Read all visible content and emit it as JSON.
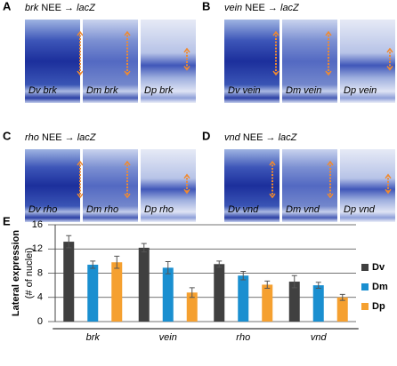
{
  "panels": [
    {
      "letter": "A",
      "gene": "brk",
      "construct": "NEE →",
      "reporter": "lacZ",
      "images": [
        "Dv brk",
        "Dm brk",
        "Dp brk"
      ]
    },
    {
      "letter": "B",
      "gene": "vein",
      "construct": "NEE →",
      "reporter": "lacZ",
      "images": [
        "Dv vein",
        "Dm vein",
        "Dp vein"
      ]
    },
    {
      "letter": "C",
      "gene": "rho",
      "construct": "NEE →",
      "reporter": "lacZ",
      "images": [
        "Dv rho",
        "Dm rho",
        "Dp rho"
      ]
    },
    {
      "letter": "D",
      "gene": "vnd",
      "construct": "NEE →",
      "reporter": "lacZ",
      "images": [
        "Dv vnd",
        "Dm vnd",
        "Dp vnd"
      ]
    }
  ],
  "chart_data": {
    "type": "bar",
    "label": "E",
    "ylabel": "Lateral expression",
    "ylabel_sub": "(# of nuclei)",
    "categories": [
      "brk",
      "vein",
      "rho",
      "vnd"
    ],
    "series": [
      {
        "name": "Dv",
        "color": "#404040",
        "values": [
          13.2,
          12.2,
          9.5,
          6.6
        ],
        "errors": [
          1.0,
          0.7,
          0.5,
          1.0
        ]
      },
      {
        "name": "Dm",
        "color": "#1a8fd0",
        "values": [
          9.4,
          8.9,
          7.6,
          6.0
        ],
        "errors": [
          0.6,
          1.0,
          0.7,
          0.5
        ]
      },
      {
        "name": "Dp",
        "color": "#f5a030",
        "values": [
          9.8,
          4.8,
          6.1,
          4.0
        ],
        "errors": [
          1.0,
          0.8,
          0.6,
          0.5
        ]
      }
    ],
    "ylim": [
      0,
      16
    ],
    "yticks": [
      0,
      4,
      8,
      12,
      16
    ],
    "grid": true
  }
}
